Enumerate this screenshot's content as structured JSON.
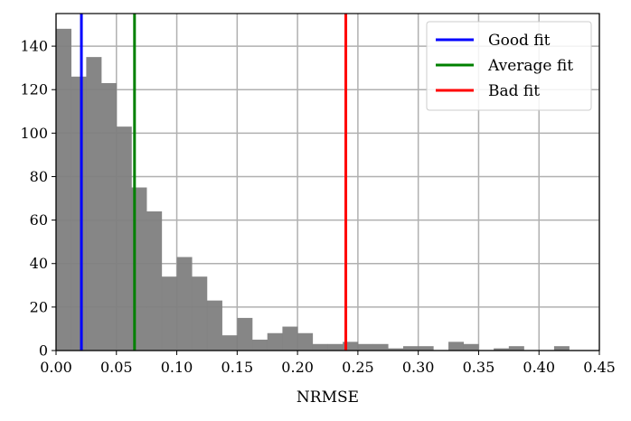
{
  "chart_data": {
    "type": "bar",
    "xlabel": "NRMSE",
    "ylabel": "",
    "xlim": [
      0.0,
      0.45
    ],
    "ylim": [
      0,
      155
    ],
    "grid": true,
    "xticks": [
      "0.00",
      "0.05",
      "0.10",
      "0.15",
      "0.20",
      "0.25",
      "0.30",
      "0.35",
      "0.40",
      "0.45"
    ],
    "xtick_values": [
      0.0,
      0.05,
      0.1,
      0.15,
      0.2,
      0.25,
      0.3,
      0.35,
      0.4,
      0.45
    ],
    "yticks": [
      "0",
      "20",
      "40",
      "60",
      "80",
      "100",
      "120",
      "140"
    ],
    "ytick_values": [
      0,
      20,
      40,
      60,
      80,
      100,
      120,
      140
    ],
    "bin_width": 0.0125,
    "bin_start": 0.0,
    "counts": [
      148,
      126,
      135,
      123,
      103,
      75,
      64,
      34,
      43,
      34,
      23,
      7,
      15,
      5,
      8,
      11,
      8,
      3,
      3,
      4,
      3,
      3,
      1,
      2,
      2,
      0,
      4,
      3,
      0,
      1,
      2,
      0,
      0,
      2
    ],
    "bar_color": "#808080",
    "vlines": [
      {
        "x": 0.021,
        "color": "#0000ff",
        "label": "Good fit"
      },
      {
        "x": 0.065,
        "color": "#008000",
        "label": "Average fit"
      },
      {
        "x": 0.24,
        "color": "#ff0000",
        "label": "Bad fit"
      }
    ],
    "legend_position": "top-right"
  }
}
